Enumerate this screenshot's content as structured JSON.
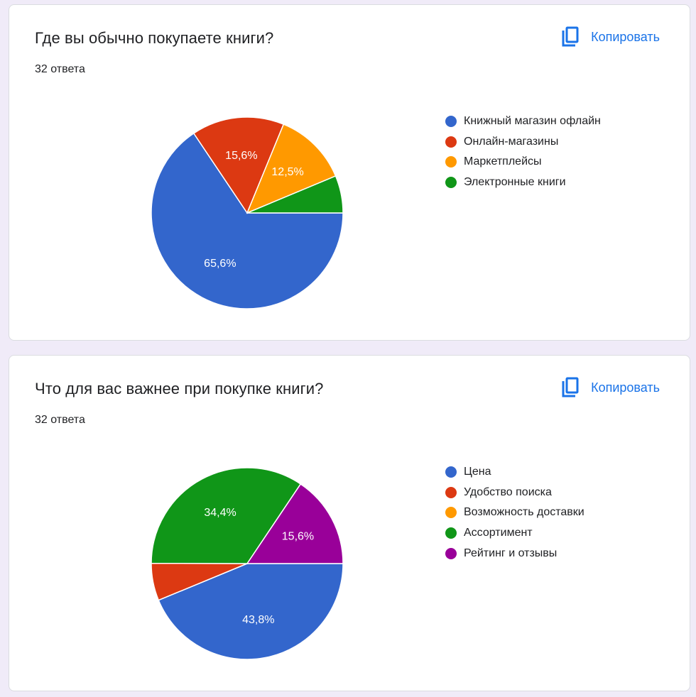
{
  "copy_label": "Копировать",
  "chart_data": [
    {
      "type": "pie",
      "title": "Где вы обычно покупаете книги?",
      "response_count": "32 ответа",
      "categories": [
        "Книжный магазин офлайн",
        "Онлайн-магазины",
        "Маркетплейсы",
        "Электронные книги"
      ],
      "values": [
        65.6,
        15.6,
        12.5,
        6.3
      ],
      "value_labels": [
        "65,6%",
        "15,6%",
        "12,5%",
        ""
      ],
      "colors": [
        "#3366cc",
        "#dc3912",
        "#ff9900",
        "#109618"
      ],
      "legend_position": "right"
    },
    {
      "type": "pie",
      "title": "Что для вас важнее при покупке книги?",
      "response_count": "32 ответа",
      "categories": [
        "Цена",
        "Удобство поиска",
        "Возможность доставки",
        "Ассортимент",
        "Рейтинг и отзывы"
      ],
      "values": [
        43.8,
        6.3,
        0,
        34.4,
        15.6
      ],
      "value_labels": [
        "43,8%",
        "",
        "",
        "34,4%",
        "15,6%"
      ],
      "colors": [
        "#3366cc",
        "#dc3912",
        "#ff9900",
        "#109618",
        "#990099"
      ],
      "legend_position": "right"
    }
  ]
}
